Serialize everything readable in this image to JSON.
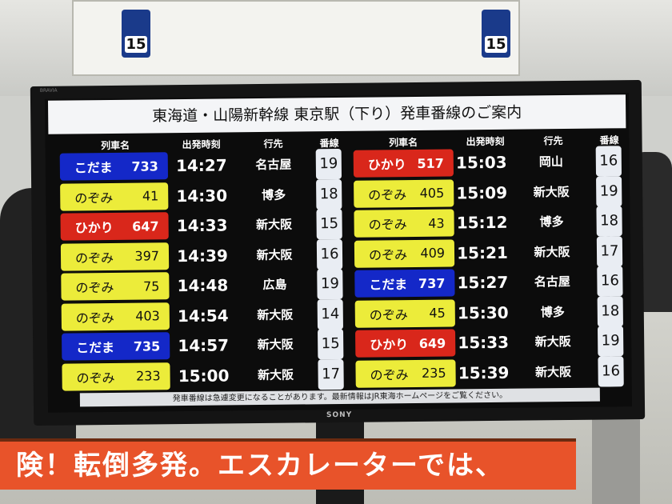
{
  "board": {
    "title": "東海道・山陽新幹線 東京駅（下り）発車番線のご案内",
    "headers": {
      "train": "列車名",
      "time": "出発時刻",
      "dest": "行先",
      "track": "番線"
    },
    "left": [
      {
        "type": "kodama",
        "name": "こだま",
        "number": "733",
        "time": "14:27",
        "dest": "名古屋",
        "track": "19"
      },
      {
        "type": "nozomi",
        "name": "のぞみ",
        "number": "41",
        "time": "14:30",
        "dest": "博多",
        "track": "18"
      },
      {
        "type": "hikari",
        "name": "ひかり",
        "number": "647",
        "time": "14:33",
        "dest": "新大阪",
        "track": "15"
      },
      {
        "type": "nozomi",
        "name": "のぞみ",
        "number": "397",
        "time": "14:39",
        "dest": "新大阪",
        "track": "16"
      },
      {
        "type": "nozomi",
        "name": "のぞみ",
        "number": "75",
        "time": "14:48",
        "dest": "広島",
        "track": "19"
      },
      {
        "type": "nozomi",
        "name": "のぞみ",
        "number": "403",
        "time": "14:54",
        "dest": "新大阪",
        "track": "14"
      },
      {
        "type": "kodama",
        "name": "こだま",
        "number": "735",
        "time": "14:57",
        "dest": "新大阪",
        "track": "15"
      },
      {
        "type": "nozomi",
        "name": "のぞみ",
        "number": "233",
        "time": "15:00",
        "dest": "新大阪",
        "track": "17"
      }
    ],
    "right": [
      {
        "type": "hikari",
        "name": "ひかり",
        "number": "517",
        "time": "15:03",
        "dest": "岡山",
        "track": "16"
      },
      {
        "type": "nozomi",
        "name": "のぞみ",
        "number": "405",
        "time": "15:09",
        "dest": "新大阪",
        "track": "19"
      },
      {
        "type": "nozomi",
        "name": "のぞみ",
        "number": "43",
        "time": "15:12",
        "dest": "博多",
        "track": "18"
      },
      {
        "type": "nozomi",
        "name": "のぞみ",
        "number": "409",
        "time": "15:21",
        "dest": "新大阪",
        "track": "17"
      },
      {
        "type": "kodama",
        "name": "こだま",
        "number": "737",
        "time": "15:27",
        "dest": "名古屋",
        "track": "16"
      },
      {
        "type": "nozomi",
        "name": "のぞみ",
        "number": "45",
        "time": "15:30",
        "dest": "博多",
        "track": "18"
      },
      {
        "type": "hikari",
        "name": "ひかり",
        "number": "649",
        "time": "15:33",
        "dest": "新大阪",
        "track": "19"
      },
      {
        "type": "nozomi",
        "name": "のぞみ",
        "number": "235",
        "time": "15:39",
        "dest": "新大阪",
        "track": "16"
      }
    ],
    "footer": "発車番線は急遽変更になることがあります。最新情報はJR東海ホームページをご覧ください。"
  },
  "monitor": {
    "brand": "SONY",
    "model": "BRAVIA"
  },
  "signage": {
    "platform_left": "15",
    "platform_right": "15",
    "banner": "険！転倒多発。エスカレーターでは、"
  },
  "colors": {
    "nozomi": "#ecec3a",
    "hikari": "#d9271b",
    "kodama": "#1428c8"
  }
}
